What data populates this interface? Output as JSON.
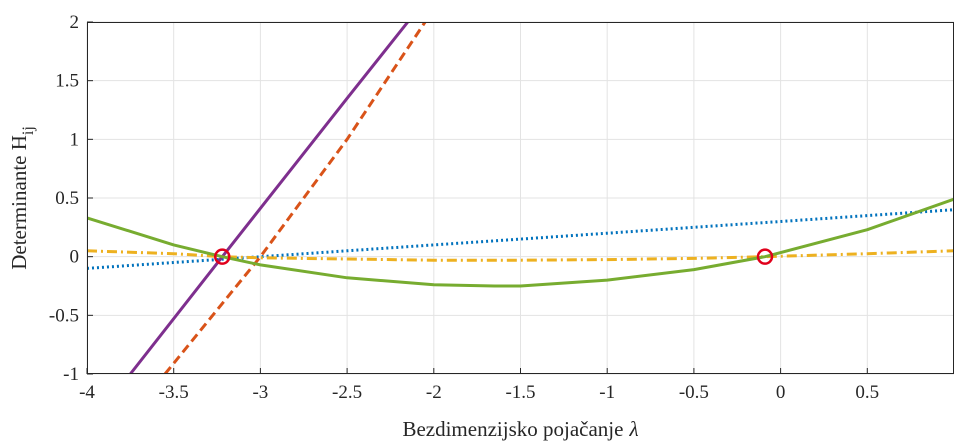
{
  "chart_data": {
    "type": "line",
    "title": "",
    "xlabel": "Bezdimenzijsko pojačanje",
    "xlabel_symbol": "λ",
    "ylabel": "Determinante H",
    "ylabel_subscript": "ij",
    "xlim": [
      -4,
      1
    ],
    "ylim": [
      -1,
      2
    ],
    "xticks": [
      -4,
      -3.5,
      -3,
      -2.5,
      -2,
      -1.5,
      -1,
      -0.5,
      0,
      0.5
    ],
    "xtick_labels": [
      "-4",
      "-3.5",
      "-3",
      "-2.5",
      "-2",
      "-1.5",
      "-1",
      "-0.5",
      "0",
      "0.5"
    ],
    "yticks": [
      -1,
      -0.5,
      0,
      0.5,
      1,
      1.5,
      2
    ],
    "ytick_labels": [
      "-1",
      "-0.5",
      "0",
      "0.5",
      "1",
      "1.5",
      "2"
    ],
    "grid": true,
    "legend": "none",
    "series": [
      {
        "style": "dotted",
        "color": "#0072BD",
        "x": [
          -4,
          -3.5,
          -3,
          -2.5,
          -2,
          -1.5,
          -1,
          -0.5,
          0,
          0.5,
          1
        ],
        "y": [
          -0.1,
          -0.05,
          0.0,
          0.05,
          0.1,
          0.15,
          0.2,
          0.25,
          0.3,
          0.35,
          0.4
        ]
      },
      {
        "style": "dashed",
        "color": "#D95319",
        "x": [
          -3.55,
          -3.0,
          -2.5,
          -2.05
        ],
        "y": [
          -1.0,
          0.0,
          1.0,
          2.0
        ]
      },
      {
        "style": "dashdot",
        "color": "#EDB120",
        "x": [
          -4,
          -3.5,
          -3.22,
          -3.0,
          -2.5,
          -2.0,
          -1.5,
          -1.0,
          -0.5,
          -0.09,
          0.5,
          1
        ],
        "y": [
          0.05,
          0.025,
          0.0,
          -0.01,
          -0.02,
          -0.03,
          -0.03,
          -0.025,
          -0.015,
          0.0,
          0.025,
          0.05
        ]
      },
      {
        "style": "solid",
        "color": "#7E2F8E",
        "x": [
          -3.75,
          -3.22,
          -2.5,
          -2.15
        ],
        "y": [
          -1.0,
          0.0,
          1.35,
          2.0
        ]
      },
      {
        "style": "solid",
        "color": "#77AC30",
        "x": [
          -4,
          -3.5,
          -3.22,
          -3.0,
          -2.5,
          -2.0,
          -1.65,
          -1.5,
          -1.0,
          -0.5,
          -0.09,
          0.5,
          1
        ],
        "y": [
          0.33,
          0.1,
          0.0,
          -0.07,
          -0.18,
          -0.24,
          -0.25,
          -0.25,
          -0.2,
          -0.11,
          0.0,
          0.23,
          0.49
        ]
      }
    ],
    "markers": [
      {
        "x": -3.22,
        "y": 0,
        "shape": "circle",
        "color": "#E0001B"
      },
      {
        "x": -0.09,
        "y": 0,
        "shape": "circle",
        "color": "#E0001B"
      }
    ]
  }
}
